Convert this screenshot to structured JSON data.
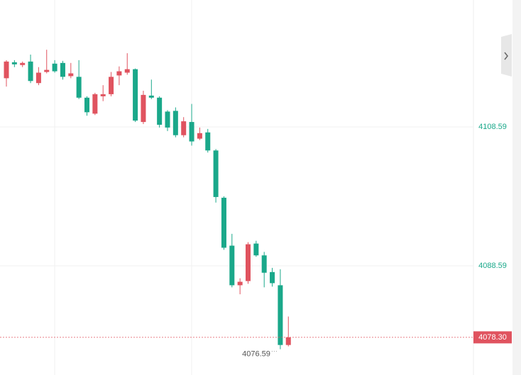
{
  "chart_data": {
    "type": "candlestick",
    "open": [
      4115.6,
      4117.9,
      4117.5,
      4118.0,
      4114.9,
      4116.5,
      4117.7,
      4117.8,
      4115.9,
      4115.8,
      4112.8,
      4110.5,
      4113.0,
      4113.3,
      4116.0,
      4116.4,
      4116.9,
      4109.3,
      4113.1,
      4112.8,
      4110.8,
      4110.9,
      4107.4,
      4109.3,
      4106.9,
      4107.8,
      4105.2,
      4098.4,
      4091.5,
      4085.8,
      4086.4,
      4091.8,
      4090.1,
      4087.7,
      4085.8,
      4077.2
    ],
    "high": [
      4118.2,
      4118.2,
      4118.0,
      4119.0,
      4117.2,
      4119.7,
      4118.2,
      4118.1,
      4117.8,
      4118.2,
      4113.0,
      4113.5,
      4114.6,
      4116.5,
      4117.3,
      4119.2,
      4117.0,
      4113.8,
      4115.4,
      4113.0,
      4111.0,
      4111.4,
      4110.0,
      4111.9,
      4108.5,
      4108.3,
      4105.4,
      4098.6,
      4093.2,
      4086.8,
      4092.0,
      4092.2,
      4090.6,
      4088.3,
      4088.1,
      4081.3
    ],
    "low": [
      4114.4,
      4117.2,
      4117.2,
      4114.9,
      4114.6,
      4116.3,
      4116.4,
      4115.4,
      4115.6,
      4112.6,
      4110.2,
      4110.3,
      4112.3,
      4113.0,
      4114.6,
      4116.1,
      4109.3,
      4109.0,
      4112.6,
      4108.5,
      4108.0,
      4107.1,
      4107.1,
      4105.9,
      4106.7,
      4104.9,
      4097.7,
      4090.9,
      4085.5,
      4084.5,
      4086.0,
      4089.9,
      4085.5,
      4085.6,
      4076.59,
      4077.0
    ],
    "close": [
      4118.0,
      4117.6,
      4117.8,
      4115.2,
      4116.4,
      4116.8,
      4116.6,
      4115.8,
      4116.3,
      4112.8,
      4110.7,
      4113.3,
      4113.3,
      4115.8,
      4116.6,
      4116.9,
      4109.5,
      4113.2,
      4112.8,
      4108.9,
      4108.5,
      4107.4,
      4109.4,
      4106.5,
      4107.7,
      4105.2,
      4098.5,
      4091.2,
      4085.8,
      4086.3,
      4091.7,
      4090.1,
      4087.6,
      4086.1,
      4077.2,
      4078.3
    ],
    "up_color": "#e0535f",
    "down_color": "#1aa88a",
    "ylim": [
      4072.88,
      4126.86
    ],
    "yticks": [
      4108.59,
      4088.59
    ],
    "grid": true,
    "last_price": {
      "value": 4078.3,
      "label": "4078.30"
    }
  }
}
